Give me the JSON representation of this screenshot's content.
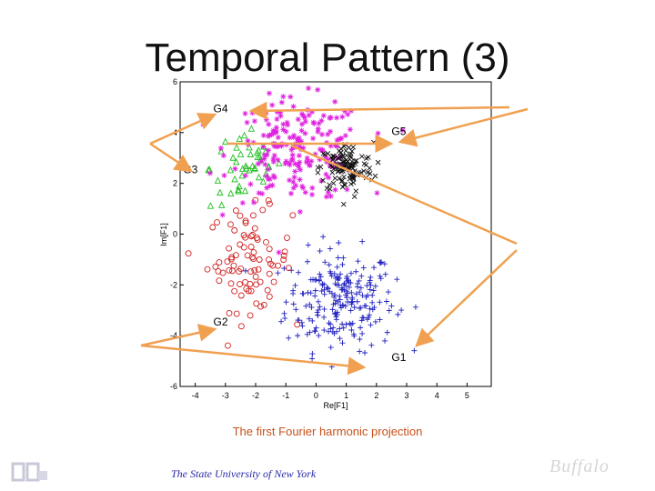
{
  "slide": {
    "title": "Temporal Pattern (3)",
    "caption": "The first Fourier harmonic projection",
    "footer": "The State University of New York",
    "logo_right": "Buffalo"
  },
  "colors": {
    "G1": "#2020c0",
    "G2": "#d02020",
    "G3": "#20c020",
    "G4": "#e020e0",
    "G5": "#111111",
    "arrow": "#f0a050"
  },
  "chart_data": {
    "type": "scatter",
    "xlabel": "Re[F1]",
    "ylabel": "Im[F1]",
    "xlim": [
      -4.5,
      5.8
    ],
    "ylim": [
      -6,
      6
    ],
    "xticks": [
      "-4",
      "-3",
      "-2",
      "-1",
      "0",
      "1",
      "2",
      "3",
      "4",
      "5"
    ],
    "yticks": [
      "-6",
      "-4",
      "-2",
      "0",
      "2",
      "4",
      "6"
    ],
    "grid": false,
    "series": [
      {
        "name": "G1",
        "marker": "plus",
        "cluster": {
          "cx": 0.8,
          "cy": -2.6,
          "sx": 0.9,
          "sy": 1.0,
          "count": 230
        }
      },
      {
        "name": "G2",
        "marker": "circle",
        "cluster": {
          "cx": -2.2,
          "cy": -1.0,
          "sx": 0.7,
          "sy": 1.0,
          "count": 85
        }
      },
      {
        "name": "G3",
        "marker": "triangle",
        "cluster": {
          "cx": -2.3,
          "cy": 2.6,
          "sx": 0.6,
          "sy": 0.8,
          "count": 45
        }
      },
      {
        "name": "G4",
        "marker": "asterisk",
        "cluster": {
          "cx": -0.6,
          "cy": 3.3,
          "sx": 1.1,
          "sy": 1.0,
          "count": 200
        }
      },
      {
        "name": "G5",
        "marker": "x",
        "cluster": {
          "cx": 1.0,
          "cy": 2.6,
          "sx": 0.45,
          "sy": 0.5,
          "count": 120
        }
      }
    ],
    "annotations": [
      {
        "text": "G4",
        "x": -3.4,
        "y": 4.8
      },
      {
        "text": "G5",
        "x": 2.5,
        "y": 3.9
      },
      {
        "text": "G3",
        "x": -4.4,
        "y": 2.4
      },
      {
        "text": "G2",
        "x": -3.4,
        "y": -3.6
      },
      {
        "text": "G1",
        "x": 2.5,
        "y": -5.0
      }
    ]
  }
}
